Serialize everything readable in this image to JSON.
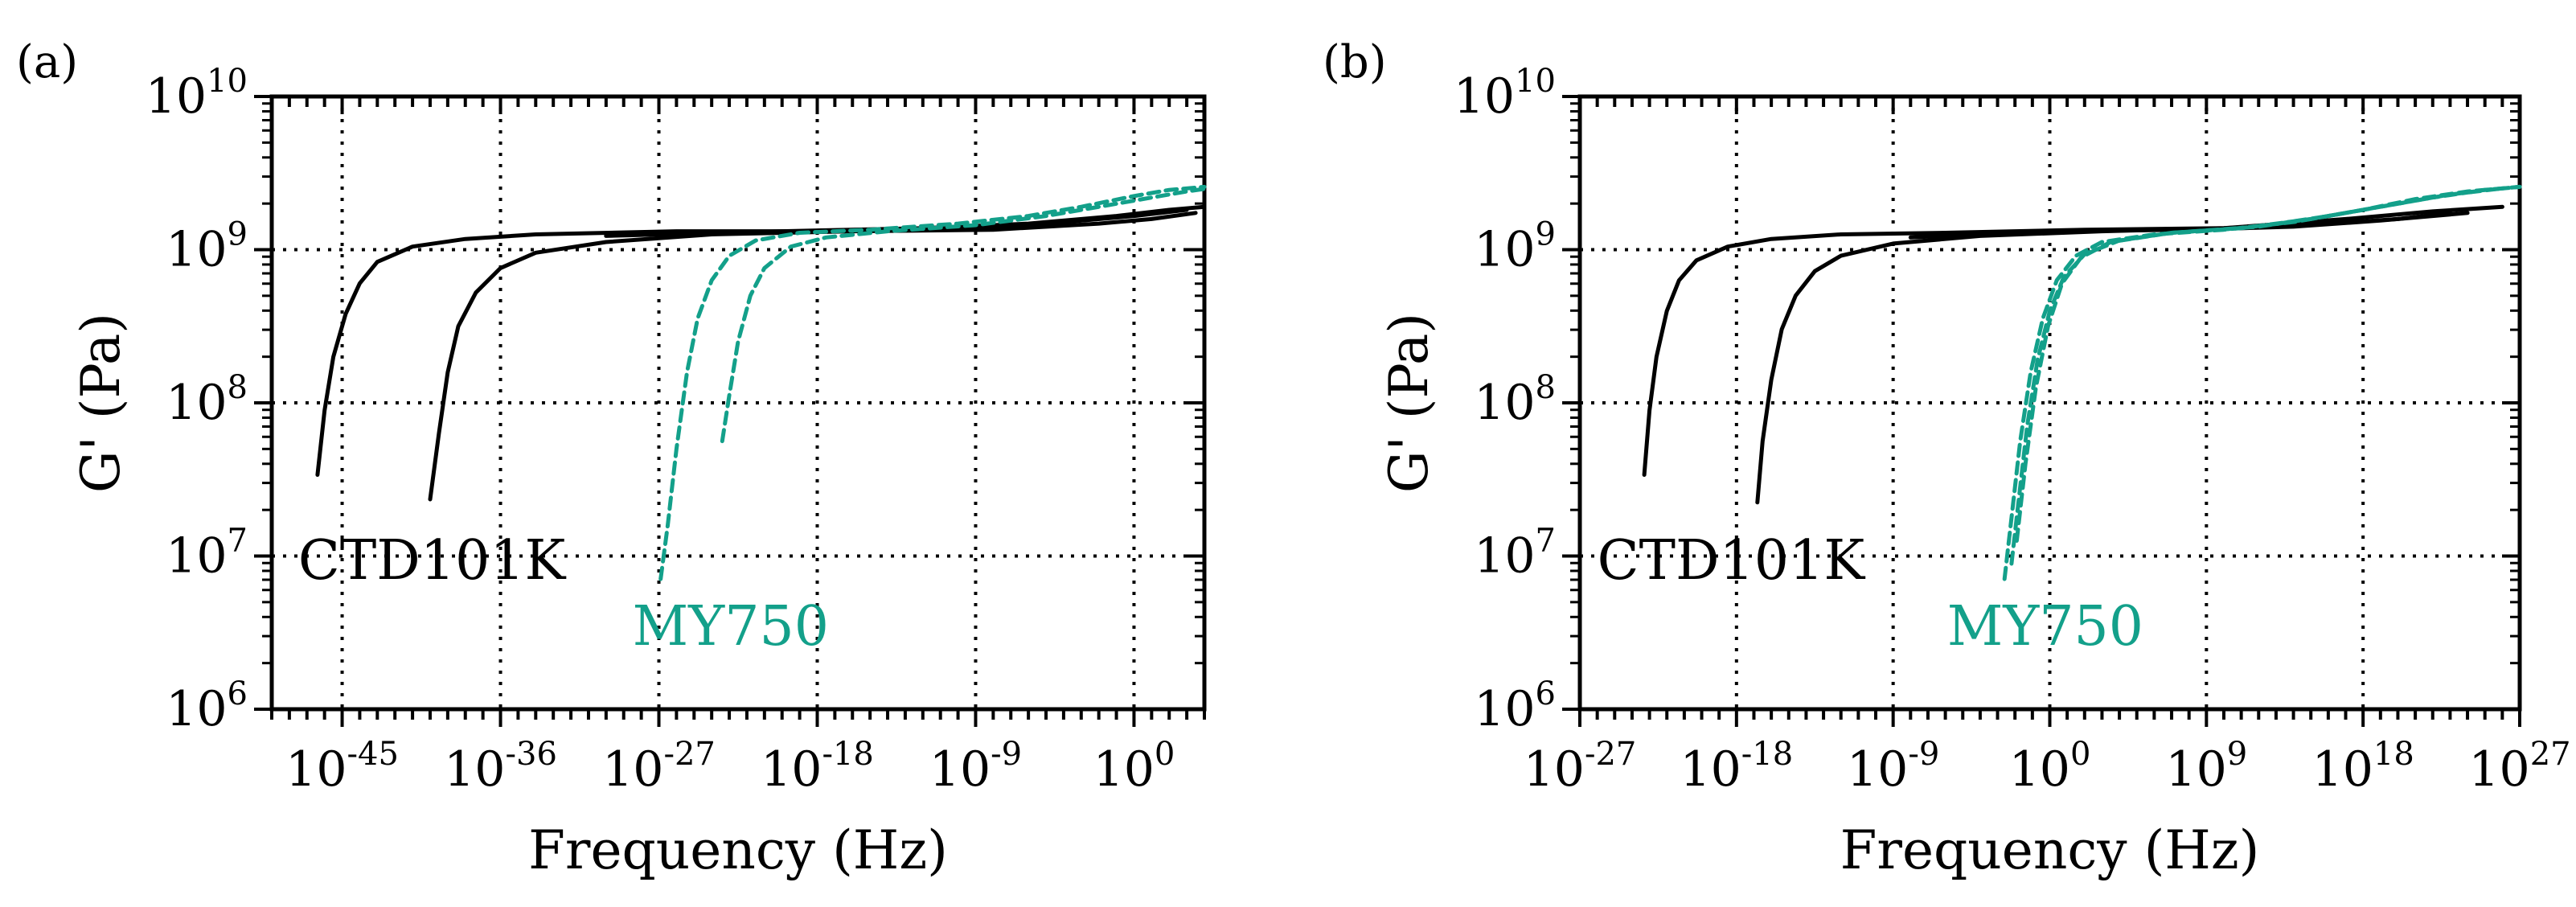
{
  "chart_data": [
    {
      "type": "line",
      "panel_label": "(a)",
      "xlabel": "Frequency (Hz)",
      "ylabel": "G' (Pa)",
      "x_scale": "log10",
      "y_scale": "log10",
      "xlim_exponent": [
        -49,
        4
      ],
      "ylim_exponent": [
        6,
        10
      ],
      "x_ticks": [
        {
          "base": "10",
          "exp": "-45",
          "value_exp": -45
        },
        {
          "base": "10",
          "exp": "-36",
          "value_exp": -36
        },
        {
          "base": "10",
          "exp": "-27",
          "value_exp": -27
        },
        {
          "base": "10",
          "exp": "-18",
          "value_exp": -18
        },
        {
          "base": "10",
          "exp": "-9",
          "value_exp": -9
        },
        {
          "base": "10",
          "exp": "0",
          "value_exp": 0
        }
      ],
      "y_ticks": [
        {
          "base": "10",
          "exp": "6",
          "value_exp": 6
        },
        {
          "base": "10",
          "exp": "7",
          "value_exp": 7
        },
        {
          "base": "10",
          "exp": "8",
          "value_exp": 8
        },
        {
          "base": "10",
          "exp": "9",
          "value_exp": 9
        },
        {
          "base": "10",
          "exp": "10",
          "value_exp": 10
        }
      ],
      "grid": true,
      "annotations": [
        {
          "text": "CTD101K",
          "color": "#000000",
          "x_exp": -47.5,
          "y_exp": 6.85
        },
        {
          "text": "MY750",
          "color": "#13a08a",
          "x_exp": -28.5,
          "y_exp": 6.42
        }
      ],
      "series": [
        {
          "name": "CTD101K curve 1",
          "group": "CTD101K",
          "color": "#000000",
          "dash": "solid",
          "points": [
            [
              -46.4,
              7.53
            ],
            [
              -46.0,
              7.95
            ],
            [
              -45.5,
              8.3
            ],
            [
              -44.8,
              8.58
            ],
            [
              -44.0,
              8.78
            ],
            [
              -43.0,
              8.92
            ],
            [
              -41.0,
              9.02
            ],
            [
              -38.0,
              9.07
            ],
            [
              -34.0,
              9.1
            ],
            [
              -26.0,
              9.12
            ],
            [
              -18.0,
              9.12
            ],
            [
              -10.0,
              9.14
            ],
            [
              -4.0,
              9.18
            ],
            [
              0.0,
              9.22
            ],
            [
              3.0,
              9.26
            ]
          ]
        },
        {
          "name": "CTD101K curve 2",
          "group": "CTD101K",
          "color": "#000000",
          "dash": "solid",
          "points": [
            [
              -40.0,
              7.37
            ],
            [
              -39.5,
              7.8
            ],
            [
              -39.0,
              8.2
            ],
            [
              -38.4,
              8.5
            ],
            [
              -37.4,
              8.72
            ],
            [
              -36.0,
              8.88
            ],
            [
              -34.0,
              8.98
            ],
            [
              -30.0,
              9.05
            ],
            [
              -24.0,
              9.1
            ],
            [
              -16.0,
              9.12
            ],
            [
              -8.0,
              9.13
            ],
            [
              -2.0,
              9.17
            ],
            [
              1.0,
              9.2
            ],
            [
              3.5,
              9.24
            ]
          ]
        },
        {
          "name": "CTD101K curve 3",
          "group": "CTD101K",
          "color": "#000000",
          "dash": "solid",
          "points": [
            [
              -30.0,
              9.09
            ],
            [
              -20.0,
              9.12
            ],
            [
              -12.0,
              9.14
            ],
            [
              -6.0,
              9.17
            ],
            [
              -1.0,
              9.22
            ],
            [
              2.0,
              9.26
            ],
            [
              4.0,
              9.28
            ]
          ]
        },
        {
          "name": "MY750 curve 1",
          "group": "MY750",
          "color": "#13a08a",
          "dash": "dashed",
          "points": [
            [
              -26.9,
              6.85
            ],
            [
              -26.5,
              7.2
            ],
            [
              -26.0,
              7.7
            ],
            [
              -25.4,
              8.2
            ],
            [
              -24.8,
              8.55
            ],
            [
              -24.0,
              8.8
            ],
            [
              -23.0,
              8.96
            ],
            [
              -21.5,
              9.06
            ],
            [
              -19.0,
              9.11
            ],
            [
              -15.0,
              9.13
            ],
            [
              -10.0,
              9.17
            ],
            [
              -6.0,
              9.22
            ],
            [
              -3.0,
              9.28
            ],
            [
              0.0,
              9.35
            ],
            [
              2.0,
              9.39
            ],
            [
              4.0,
              9.41
            ]
          ]
        },
        {
          "name": "MY750 curve 2",
          "group": "MY750",
          "color": "#13a08a",
          "dash": "dashed",
          "points": [
            [
              -23.4,
              7.75
            ],
            [
              -23.0,
              8.05
            ],
            [
              -22.5,
              8.4
            ],
            [
              -21.8,
              8.7
            ],
            [
              -21.0,
              8.88
            ],
            [
              -19.5,
              9.02
            ],
            [
              -17.5,
              9.08
            ],
            [
              -14.0,
              9.12
            ],
            [
              -9.0,
              9.16
            ],
            [
              -5.0,
              9.22
            ],
            [
              -2.0,
              9.28
            ],
            [
              1.0,
              9.34
            ],
            [
              3.0,
              9.38
            ],
            [
              4.2,
              9.4
            ]
          ]
        }
      ]
    },
    {
      "type": "line",
      "panel_label": "(b)",
      "xlabel": "Frequency (Hz)",
      "ylabel": "G' (Pa)",
      "x_scale": "log10",
      "y_scale": "log10",
      "xlim_exponent": [
        -27,
        27
      ],
      "ylim_exponent": [
        6,
        10
      ],
      "x_ticks": [
        {
          "base": "10",
          "exp": "-27",
          "value_exp": -27
        },
        {
          "base": "10",
          "exp": "-18",
          "value_exp": -18
        },
        {
          "base": "10",
          "exp": "-9",
          "value_exp": -9
        },
        {
          "base": "10",
          "exp": "0",
          "value_exp": 0
        },
        {
          "base": "10",
          "exp": "9",
          "value_exp": 9
        },
        {
          "base": "10",
          "exp": "18",
          "value_exp": 18
        },
        {
          "base": "10",
          "exp": "27",
          "value_exp": 27
        }
      ],
      "y_ticks": [
        {
          "base": "10",
          "exp": "6",
          "value_exp": 6
        },
        {
          "base": "10",
          "exp": "7",
          "value_exp": 7
        },
        {
          "base": "10",
          "exp": "8",
          "value_exp": 8
        },
        {
          "base": "10",
          "exp": "9",
          "value_exp": 9
        },
        {
          "base": "10",
          "exp": "10",
          "value_exp": 10
        }
      ],
      "grid": true,
      "annotations": [
        {
          "text": "CTD101K",
          "color": "#000000",
          "x_exp": -26.0,
          "y_exp": 6.85
        },
        {
          "text": "MY750",
          "color": "#13a08a",
          "x_exp": -5.9,
          "y_exp": 6.42
        }
      ],
      "series": [
        {
          "name": "CTD101K curve 1",
          "group": "CTD101K",
          "color": "#000000",
          "dash": "solid",
          "points": [
            [
              -23.3,
              7.53
            ],
            [
              -23.0,
              7.95
            ],
            [
              -22.6,
              8.3
            ],
            [
              -22.0,
              8.6
            ],
            [
              -21.3,
              8.8
            ],
            [
              -20.3,
              8.93
            ],
            [
              -18.5,
              9.02
            ],
            [
              -16.0,
              9.07
            ],
            [
              -12.0,
              9.1
            ],
            [
              -6.0,
              9.11
            ],
            [
              2.0,
              9.13
            ],
            [
              10.0,
              9.14
            ],
            [
              16.0,
              9.17
            ],
            [
              20.0,
              9.2
            ],
            [
              23.0,
              9.24
            ]
          ]
        },
        {
          "name": "CTD101K curve 2",
          "group": "CTD101K",
          "color": "#000000",
          "dash": "solid",
          "points": [
            [
              -16.8,
              7.35
            ],
            [
              -16.5,
              7.75
            ],
            [
              -16.0,
              8.15
            ],
            [
              -15.4,
              8.48
            ],
            [
              -14.6,
              8.7
            ],
            [
              -13.5,
              8.86
            ],
            [
              -12.0,
              8.96
            ],
            [
              -9.0,
              9.04
            ],
            [
              -4.0,
              9.09
            ],
            [
              3.0,
              9.12
            ],
            [
              10.0,
              9.14
            ],
            [
              17.0,
              9.2
            ],
            [
              22.0,
              9.25
            ],
            [
              26.0,
              9.28
            ]
          ]
        },
        {
          "name": "CTD101K curve 3",
          "group": "CTD101K",
          "color": "#000000",
          "dash": "solid",
          "points": [
            [
              -8.0,
              9.08
            ],
            [
              0.0,
              9.12
            ],
            [
              8.0,
              9.13
            ],
            [
              14.0,
              9.15
            ],
            [
              19.0,
              9.19
            ],
            [
              24.0,
              9.24
            ]
          ]
        },
        {
          "name": "MY750 curve 1",
          "group": "MY750",
          "color": "#13a08a",
          "dash": "dashed",
          "points": [
            [
              -2.6,
              6.85
            ],
            [
              -2.2,
              7.25
            ],
            [
              -1.7,
              7.75
            ],
            [
              -1.1,
              8.2
            ],
            [
              -0.4,
              8.55
            ],
            [
              0.4,
              8.8
            ],
            [
              1.5,
              8.96
            ],
            [
              3.0,
              9.05
            ],
            [
              6.0,
              9.1
            ],
            [
              10.0,
              9.13
            ],
            [
              14.0,
              9.18
            ],
            [
              18.0,
              9.26
            ],
            [
              21.0,
              9.33
            ],
            [
              24.0,
              9.38
            ],
            [
              27.0,
              9.41
            ]
          ]
        },
        {
          "name": "MY750 curve 2",
          "group": "MY750",
          "color": "#13a08a",
          "dash": "dashed",
          "points": [
            [
              -2.2,
              6.95
            ],
            [
              -1.8,
              7.35
            ],
            [
              -1.3,
              7.85
            ],
            [
              -0.7,
              8.28
            ],
            [
              0.0,
              8.6
            ],
            [
              0.8,
              8.82
            ],
            [
              2.0,
              8.97
            ],
            [
              4.0,
              9.06
            ],
            [
              7.0,
              9.11
            ],
            [
              11.0,
              9.14
            ],
            [
              15.0,
              9.2
            ],
            [
              19.0,
              9.28
            ],
            [
              22.0,
              9.34
            ],
            [
              25.0,
              9.39
            ],
            [
              27.0,
              9.41
            ]
          ]
        },
        {
          "name": "MY750 curve 3",
          "group": "MY750",
          "color": "#13a08a",
          "dash": "dashed",
          "points": [
            [
              -1.9,
              7.1
            ],
            [
              -1.4,
              7.6
            ],
            [
              -0.8,
              8.1
            ],
            [
              -0.1,
              8.5
            ],
            [
              0.7,
              8.78
            ],
            [
              1.8,
              8.95
            ],
            [
              3.5,
              9.05
            ],
            [
              7.0,
              9.11
            ],
            [
              12.0,
              9.15
            ],
            [
              16.0,
              9.22
            ],
            [
              20.0,
              9.3
            ],
            [
              23.0,
              9.36
            ],
            [
              26.0,
              9.4
            ]
          ]
        }
      ]
    }
  ]
}
